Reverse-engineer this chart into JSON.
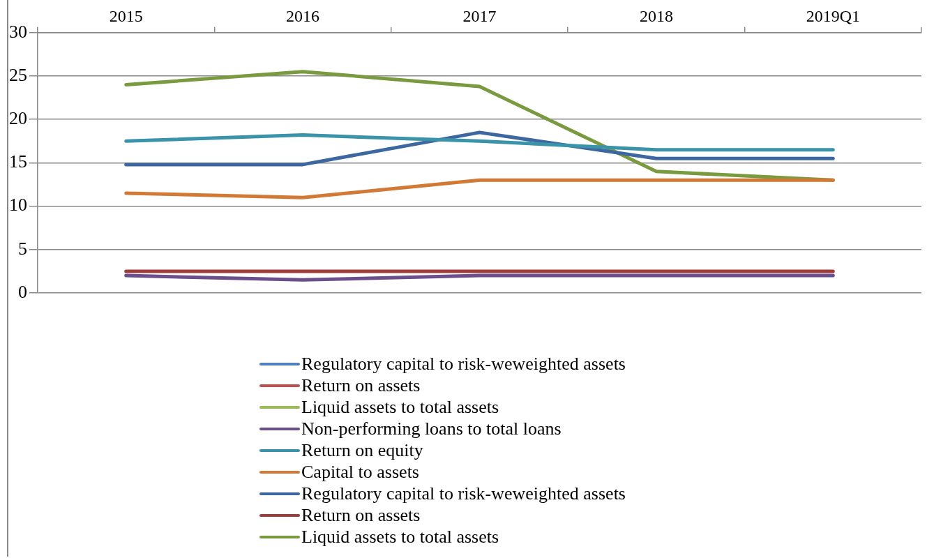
{
  "chart_data": {
    "type": "line",
    "categories": [
      "2015",
      "2016",
      "2017",
      "2018",
      "2019Q1"
    ],
    "ylim": [
      0,
      30
    ],
    "yticks": [
      0,
      5,
      10,
      15,
      20,
      25,
      30
    ],
    "grid": "y",
    "legend": "bottom",
    "line_style": "solid",
    "marker": "none",
    "series": [
      {
        "name": "Regulatory capital to risk-weweighted assets",
        "color": "#4f81bd",
        "values": [
          null,
          null,
          null,
          null,
          null
        ]
      },
      {
        "name": "Return on assets",
        "color": "#c0504d",
        "values": [
          null,
          null,
          null,
          null,
          null
        ]
      },
      {
        "name": "Liquid assets to total assets",
        "color": "#9bbb59",
        "values": [
          null,
          null,
          null,
          null,
          null
        ]
      },
      {
        "name": "Non-performing loans to total loans",
        "color": "#6a4f8c",
        "values": [
          2,
          1.5,
          2,
          2,
          2
        ]
      },
      {
        "name": "Return on equity",
        "color": "#3a93a8",
        "values": [
          17.5,
          18.2,
          17.5,
          16.5,
          16.5
        ]
      },
      {
        "name": "Capital to assets",
        "color": "#d27a35",
        "values": [
          11.5,
          11,
          13,
          13,
          13
        ]
      },
      {
        "name": "Regulatory capital to risk-weweighted assets",
        "color": "#3d67a0",
        "values": [
          14.8,
          14.8,
          18.5,
          15.5,
          15.5
        ]
      },
      {
        "name": "Return on assets",
        "color": "#a03c3a",
        "values": [
          2.5,
          2.5,
          2.5,
          2.5,
          2.5
        ]
      },
      {
        "name": "Liquid assets to total assets",
        "color": "#7a9a3f",
        "values": [
          24,
          25.5,
          23.8,
          14,
          13
        ]
      }
    ]
  }
}
